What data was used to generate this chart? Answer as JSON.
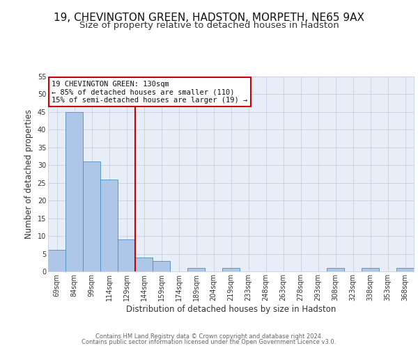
{
  "title1": "19, CHEVINGTON GREEN, HADSTON, MORPETH, NE65 9AX",
  "title2": "Size of property relative to detached houses in Hadston",
  "xlabel": "Distribution of detached houses by size in Hadston",
  "ylabel": "Number of detached properties",
  "bin_labels": [
    "69sqm",
    "84sqm",
    "99sqm",
    "114sqm",
    "129sqm",
    "144sqm",
    "159sqm",
    "174sqm",
    "189sqm",
    "204sqm",
    "219sqm",
    "233sqm",
    "248sqm",
    "263sqm",
    "278sqm",
    "293sqm",
    "308sqm",
    "323sqm",
    "338sqm",
    "353sqm",
    "368sqm"
  ],
  "bar_values": [
    6,
    45,
    31,
    26,
    9,
    4,
    3,
    0,
    1,
    0,
    1,
    0,
    0,
    0,
    0,
    0,
    1,
    0,
    1,
    0,
    1
  ],
  "bar_color": "#aec6e8",
  "bar_edge_color": "#4a90c4",
  "red_line_x": 4.5,
  "annotation_line1": "19 CHEVINGTON GREEN: 130sqm",
  "annotation_line2": "← 85% of detached houses are smaller (110)",
  "annotation_line3": "15% of semi-detached houses are larger (19) →",
  "annotation_box_color": "#ffffff",
  "annotation_box_edge_color": "#cc0000",
  "red_line_color": "#cc0000",
  "background_color": "#e8eef8",
  "ylim": [
    0,
    55
  ],
  "yticks": [
    0,
    5,
    10,
    15,
    20,
    25,
    30,
    35,
    40,
    45,
    50,
    55
  ],
  "footer_text1": "Contains HM Land Registry data © Crown copyright and database right 2024.",
  "footer_text2": "Contains public sector information licensed under the Open Government Licence v3.0.",
  "title_fontsize": 11,
  "subtitle_fontsize": 9.5,
  "axis_label_fontsize": 8.5,
  "tick_fontsize": 7,
  "annotation_fontsize": 7.5,
  "footer_fontsize": 6
}
